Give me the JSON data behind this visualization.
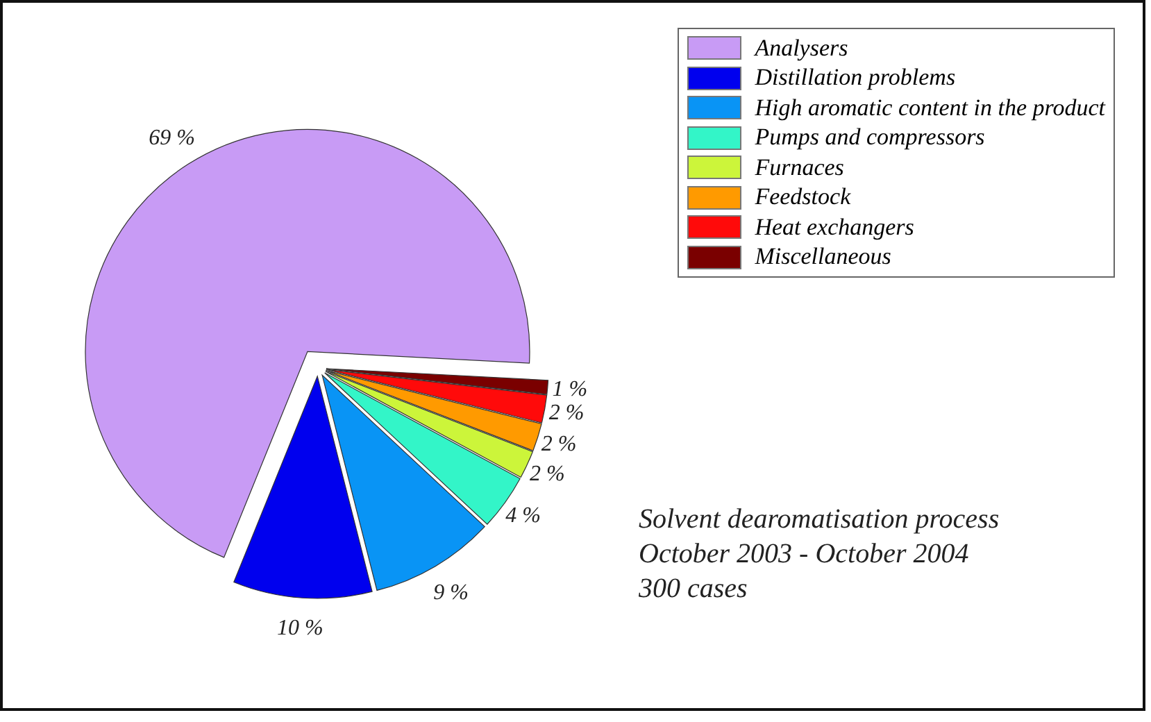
{
  "chart_data": {
    "type": "pie",
    "categories": [
      "Analysers",
      "Distillation problems",
      "High aromatic content in the product",
      "Pumps and compressors",
      "Furnaces",
      "Feedstock",
      "Heat exchangers",
      "Miscellaneous"
    ],
    "values": [
      69,
      10,
      9,
      4,
      2,
      2,
      2,
      1
    ],
    "colors": [
      "#c89bf5",
      "#0000ee",
      "#0994f5",
      "#33f5c8",
      "#ccf53a",
      "#ff9a00",
      "#ff0a0a",
      "#7a0000"
    ],
    "value_labels": [
      "69 %",
      "10 %",
      "9 %",
      "4 %",
      "2 %",
      "2 %",
      "2 %",
      "1 %"
    ],
    "legend": "top right",
    "annotations": [
      "Solvent dearomatisation process",
      "October 2003 - October 2004",
      "300 cases"
    ]
  }
}
